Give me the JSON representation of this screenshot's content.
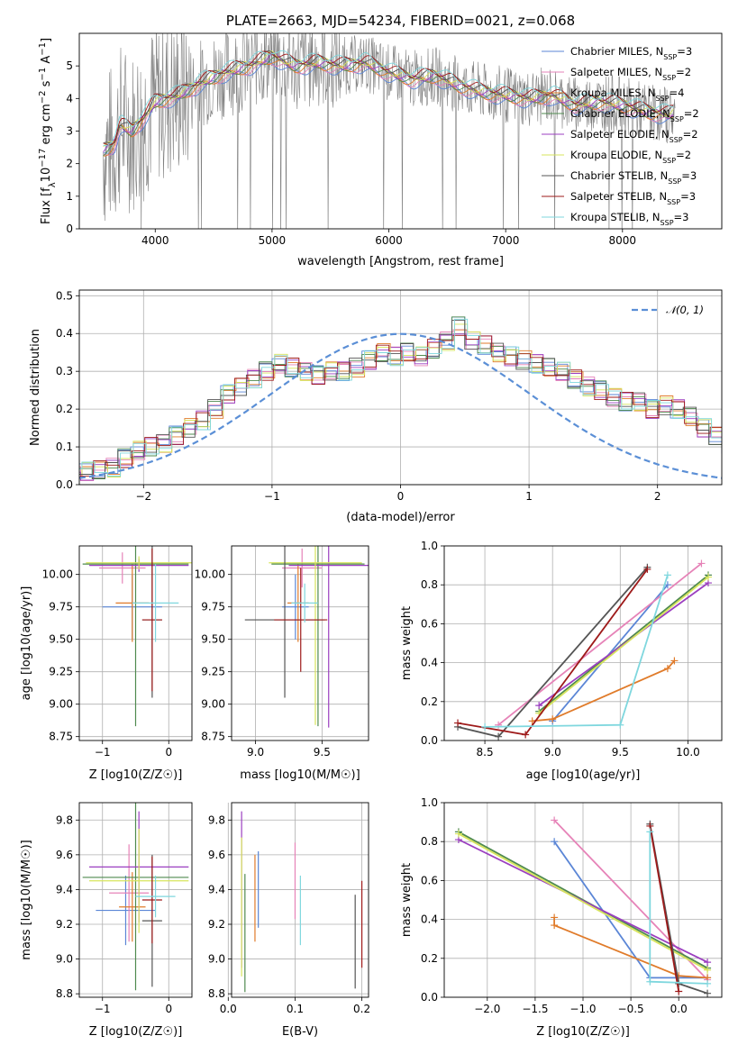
{
  "colors": {
    "chabrier_miles": "#5b86d6",
    "salpeter_miles": "#e683b8",
    "kroupa_miles": "#e07b2a",
    "chabrier_elodie": "#4f8a4f",
    "salpeter_elodie": "#9b3fc0",
    "kroupa_elodie": "#d7e45c",
    "chabrier_stelib": "#555555",
    "salpeter_stelib": "#9e1a1a",
    "kroupa_stelib": "#7fd7de",
    "data": "#808080",
    "normal": "#5b8fd6"
  },
  "chart_data": [
    {
      "id": "spectrum",
      "type": "line",
      "title": "PLATE=2663, MJD=54234, FIBERID=0021, z=0.068",
      "xlabel": "wavelength [Angstrom, rest frame]",
      "ylabel": "Flux [fλ10⁻¹⁷ erg cm⁻² s⁻¹ A⁻¹]",
      "xlim": [
        3350,
        8850
      ],
      "ylim": [
        0,
        6
      ],
      "xticks": [
        4000,
        5000,
        6000,
        7000,
        8000
      ],
      "yticks": [
        0,
        1,
        2,
        3,
        4,
        5
      ],
      "continuum": [
        [
          3550,
          2.4
        ],
        [
          3650,
          2.6
        ],
        [
          3700,
          3.2
        ],
        [
          3800,
          3.0
        ],
        [
          3900,
          3.4
        ],
        [
          4000,
          3.9
        ],
        [
          4200,
          4.1
        ],
        [
          4400,
          4.5
        ],
        [
          4600,
          4.8
        ],
        [
          4800,
          5.0
        ],
        [
          5000,
          5.3
        ],
        [
          5200,
          5.0
        ],
        [
          5400,
          5.1
        ],
        [
          5600,
          5.0
        ],
        [
          5800,
          5.1
        ],
        [
          6000,
          4.8
        ],
        [
          6200,
          4.6
        ],
        [
          6400,
          4.7
        ],
        [
          6600,
          4.4
        ],
        [
          6800,
          4.2
        ],
        [
          7000,
          4.1
        ],
        [
          7200,
          4.0
        ],
        [
          7400,
          4.1
        ],
        [
          7600,
          3.8
        ],
        [
          7800,
          3.9
        ],
        [
          8000,
          3.8
        ],
        [
          8200,
          3.6
        ],
        [
          8400,
          3.5
        ],
        [
          8450,
          3.6
        ]
      ],
      "legend_placement": "upper-right",
      "series": [
        {
          "name": "Chabrier MILES, N",
          "sub": "SSP",
          "suffix": "=3",
          "color": "chabrier_miles"
        },
        {
          "name": "Salpeter MILES, N",
          "sub": "SSP",
          "suffix": "=2",
          "color": "salpeter_miles"
        },
        {
          "name": "Kroupa MILES, N",
          "sub": "SSP",
          "suffix": "=4",
          "color": "kroupa_miles"
        },
        {
          "name": "Chabrier ELODIE, N",
          "sub": "SSP",
          "suffix": "=2",
          "color": "chabrier_elodie"
        },
        {
          "name": "Salpeter ELODIE, N",
          "sub": "SSP",
          "suffix": "=2",
          "color": "salpeter_elodie"
        },
        {
          "name": "Kroupa ELODIE, N",
          "sub": "SSP",
          "suffix": "=2",
          "color": "kroupa_elodie"
        },
        {
          "name": "Chabrier STELIB, N",
          "sub": "SSP",
          "suffix": "=3",
          "color": "chabrier_stelib"
        },
        {
          "name": "Salpeter STELIB, N",
          "sub": "SSP",
          "suffix": "=3",
          "color": "salpeter_stelib"
        },
        {
          "name": "Kroupa STELIB, N",
          "sub": "SSP",
          "suffix": "=3",
          "color": "kroupa_stelib"
        }
      ]
    },
    {
      "id": "residuals",
      "type": "line",
      "xlabel": "(data-model)/error",
      "ylabel": "Normed distribution",
      "xlim": [
        -2.5,
        2.5
      ],
      "ylim": [
        0,
        0.515
      ],
      "xticks": [
        -2,
        -1,
        0,
        1,
        2
      ],
      "yticks": [
        0.0,
        0.1,
        0.2,
        0.3,
        0.4,
        0.5
      ],
      "grid": true,
      "legend_placement": "upper-right",
      "legend": "𝒩(0, 1)",
      "bin_width": 0.1,
      "histogram": [
        0.04,
        0.04,
        0.035,
        0.045,
        0.04,
        0.035,
        0.04,
        0.045,
        0.07,
        0.09,
        0.1,
        0.11,
        0.13,
        0.15,
        0.17,
        0.2,
        0.24,
        0.26,
        0.28,
        0.3,
        0.32,
        0.31,
        0.3,
        0.29,
        0.3,
        0.3,
        0.31,
        0.33,
        0.35,
        0.34,
        0.35,
        0.34,
        0.36,
        0.38,
        0.42,
        0.38,
        0.37,
        0.35,
        0.34,
        0.33,
        0.32,
        0.31,
        0.3,
        0.28,
        0.26,
        0.25,
        0.23,
        0.22,
        0.22,
        0.2,
        0.21,
        0.2,
        0.18,
        0.15,
        0.13,
        0.1,
        0.09,
        0.08,
        0.07,
        0.07,
        0.06,
        0.06,
        0.055,
        0.05,
        0.045,
        0.04,
        0.04,
        0.035,
        0.035,
        0.03
      ]
    },
    {
      "id": "age-vs-z",
      "type": "scatter",
      "xlabel": "Z [log10(Z/Z☉)]",
      "ylabel": "age  [log10(age/yr)]",
      "xlim": [
        -1.35,
        0.35
      ],
      "ylim": [
        8.72,
        10.22
      ],
      "xticks": [
        -1,
        0
      ],
      "yticks": [
        8.75,
        9.0,
        9.25,
        9.5,
        9.75,
        10.0
      ],
      "grid": true,
      "points": [
        {
          "color": "chabrier_miles",
          "x": -0.55,
          "xerr": 0.45,
          "y": 9.75,
          "yerr": 0.25
        },
        {
          "color": "salpeter_miles",
          "x": -0.7,
          "xerr": 0.35,
          "y": 10.05,
          "yerr": 0.12
        },
        {
          "color": "kroupa_miles",
          "x": -0.55,
          "xerr": 0.25,
          "y": 9.78,
          "yerr": 0.3
        },
        {
          "color": "chabrier_elodie",
          "x": -0.5,
          "xerr": 0.8,
          "y": 10.08,
          "yerr": 1.25
        },
        {
          "color": "salpeter_elodie",
          "x": -0.45,
          "xerr": 0.75,
          "y": 10.07,
          "yerr": 0.05
        },
        {
          "color": "kroupa_elodie",
          "x": -0.45,
          "xerr": 0.8,
          "y": 10.09,
          "yerr": 0.05
        },
        {
          "color": "chabrier_stelib",
          "x": -0.25,
          "xerr": 0.15,
          "y": 9.65,
          "yerr": 0.6
        },
        {
          "color": "salpeter_stelib",
          "x": -0.25,
          "xerr": 0.15,
          "y": 9.65,
          "yerr": 0.55
        },
        {
          "color": "kroupa_stelib",
          "x": -0.2,
          "xerr": 0.35,
          "y": 9.78,
          "yerr": 0.3
        }
      ]
    },
    {
      "id": "age-vs-mass",
      "type": "scatter",
      "xlabel": "mass [log10(M/M☉)]",
      "xlim": [
        8.82,
        9.85
      ],
      "ylim": [
        8.72,
        10.22
      ],
      "xticks": [
        9.0,
        9.5
      ],
      "yticks": [
        8.75,
        9.0,
        9.25,
        9.5,
        9.75,
        10.0
      ],
      "grid": true,
      "points": [
        {
          "color": "chabrier_miles",
          "x": 9.3,
          "xerr": 0.1,
          "y": 9.75,
          "yerr": 0.25
        },
        {
          "color": "salpeter_miles",
          "x": 9.35,
          "xerr": 0.15,
          "y": 10.05,
          "yerr": 0.15
        },
        {
          "color": "kroupa_miles",
          "x": 9.32,
          "xerr": 0.08,
          "y": 9.78,
          "yerr": 0.3
        },
        {
          "color": "chabrier_elodie",
          "x": 9.47,
          "xerr": 0.35,
          "y": 10.08,
          "yerr": 1.25
        },
        {
          "color": "salpeter_elodie",
          "x": 9.55,
          "xerr": 0.3,
          "y": 10.07,
          "yerr": 1.25
        },
        {
          "color": "kroupa_elodie",
          "x": 9.45,
          "xerr": 0.35,
          "y": 10.09,
          "yerr": 1.25
        },
        {
          "color": "chabrier_stelib",
          "x": 9.22,
          "xerr": 0.3,
          "y": 9.65,
          "yerr": 0.6
        },
        {
          "color": "salpeter_stelib",
          "x": 9.34,
          "xerr": 0.2,
          "y": 9.65,
          "yerr": 0.4
        },
        {
          "color": "kroupa_stelib",
          "x": 9.37,
          "xerr": 0.1,
          "y": 9.78,
          "yerr": 0.15
        }
      ]
    },
    {
      "id": "mass-weight-vs-age",
      "type": "line",
      "xlabel": "age  [log10(age/yr)]",
      "ylabel": "mass weight",
      "xlim": [
        8.2,
        10.25
      ],
      "ylim": [
        0,
        1
      ],
      "xticks": [
        8.5,
        9.0,
        9.5,
        10.0
      ],
      "yticks": [
        0.0,
        0.2,
        0.4,
        0.6,
        0.8,
        1.0
      ],
      "grid": true,
      "series": [
        {
          "color": "chabrier_miles",
          "x": [
            9.0,
            9.85
          ],
          "y": [
            0.1,
            0.8
          ]
        },
        {
          "color": "salpeter_miles",
          "x": [
            8.6,
            10.1
          ],
          "y": [
            0.08,
            0.91
          ]
        },
        {
          "color": "kroupa_miles",
          "x": [
            8.85,
            9.0,
            9.85,
            9.9
          ],
          "y": [
            0.1,
            0.11,
            0.37,
            0.41
          ]
        },
        {
          "color": "chabrier_elodie",
          "x": [
            8.9,
            10.15
          ],
          "y": [
            0.15,
            0.85
          ]
        },
        {
          "color": "salpeter_elodie",
          "x": [
            8.9,
            10.15
          ],
          "y": [
            0.18,
            0.81
          ]
        },
        {
          "color": "kroupa_elodie",
          "x": [
            8.9,
            10.15
          ],
          "y": [
            0.14,
            0.84
          ]
        },
        {
          "color": "chabrier_stelib",
          "x": [
            8.3,
            8.6,
            9.7
          ],
          "y": [
            0.07,
            0.02,
            0.89
          ]
        },
        {
          "color": "salpeter_stelib",
          "x": [
            8.3,
            8.8,
            9.7
          ],
          "y": [
            0.09,
            0.03,
            0.88
          ]
        },
        {
          "color": "kroupa_stelib",
          "x": [
            8.5,
            9.5,
            9.85
          ],
          "y": [
            0.07,
            0.08,
            0.85
          ]
        }
      ]
    },
    {
      "id": "mass-vs-z",
      "type": "scatter",
      "xlabel": "Z [log10(Z/Z☉)]",
      "ylabel": "mass [log10(M/M☉)]",
      "xlim": [
        -1.35,
        0.35
      ],
      "ylim": [
        8.78,
        9.9
      ],
      "xticks": [
        -1,
        0
      ],
      "yticks": [
        8.8,
        9.0,
        9.2,
        9.4,
        9.6,
        9.8
      ],
      "grid": true,
      "points": [
        {
          "color": "chabrier_miles",
          "x": -0.65,
          "xerr": 0.45,
          "y": 9.28,
          "yerr": 0.2
        },
        {
          "color": "salpeter_miles",
          "x": -0.6,
          "xerr": 0.3,
          "y": 9.38,
          "yerr": 0.28
        },
        {
          "color": "kroupa_miles",
          "x": -0.55,
          "xerr": 0.2,
          "y": 9.3,
          "yerr": 0.2
        },
        {
          "color": "chabrier_elodie",
          "x": -0.5,
          "xerr": 0.8,
          "y": 9.47,
          "yerr": 0.65
        },
        {
          "color": "salpeter_elodie",
          "x": -0.45,
          "xerr": 0.75,
          "y": 9.53,
          "yerr": 0.32
        },
        {
          "color": "kroupa_elodie",
          "x": -0.45,
          "xerr": 0.75,
          "y": 9.45,
          "yerr": 0.3
        },
        {
          "color": "chabrier_stelib",
          "x": -0.25,
          "xerr": 0.15,
          "y": 9.22,
          "yerr": 0.38
        },
        {
          "color": "salpeter_stelib",
          "x": -0.25,
          "xerr": 0.15,
          "y": 9.34,
          "yerr": 0.25
        },
        {
          "color": "kroupa_stelib",
          "x": -0.2,
          "xerr": 0.3,
          "y": 9.36,
          "yerr": 0.12
        }
      ]
    },
    {
      "id": "mass-vs-ebv",
      "type": "scatter",
      "xlabel": "E(B-V)",
      "xlim": [
        0.005,
        0.21
      ],
      "ylim": [
        8.78,
        9.9
      ],
      "xticks": [
        0.0,
        0.1,
        0.2
      ],
      "yticks": [
        8.8,
        9.0,
        9.2,
        9.4,
        9.6,
        9.8
      ],
      "grid": true,
      "points": [
        {
          "color": "chabrier_miles",
          "x": 0.045,
          "y": 9.4,
          "yerr": 0.22
        },
        {
          "color": "salpeter_miles",
          "x": 0.1,
          "y": 9.45,
          "yerr": 0.22
        },
        {
          "color": "kroupa_miles",
          "x": 0.04,
          "y": 9.35,
          "yerr": 0.25
        },
        {
          "color": "chabrier_elodie",
          "x": 0.025,
          "y": 9.15,
          "yerr": 0.34
        },
        {
          "color": "salpeter_elodie",
          "x": 0.02,
          "y": 9.4,
          "yerr": 0.45
        },
        {
          "color": "kroupa_elodie",
          "x": 0.02,
          "y": 9.3,
          "yerr": 0.4
        },
        {
          "color": "chabrier_stelib",
          "x": 0.19,
          "y": 9.1,
          "yerr": 0.27
        },
        {
          "color": "salpeter_stelib",
          "x": 0.2,
          "y": 9.2,
          "yerr": 0.25
        },
        {
          "color": "kroupa_stelib",
          "x": 0.108,
          "y": 9.28,
          "yerr": 0.2
        }
      ]
    },
    {
      "id": "mass-weight-vs-z",
      "type": "line",
      "xlabel": "Z [log10(Z/Z☉)]",
      "ylabel": "mass weight",
      "xlim": [
        -2.45,
        0.45
      ],
      "ylim": [
        0,
        1
      ],
      "xticks": [
        -2.0,
        -1.5,
        -1.0,
        -0.5,
        0.0
      ],
      "yticks": [
        0.0,
        0.2,
        0.4,
        0.6,
        0.8,
        1.0
      ],
      "grid": true,
      "series": [
        {
          "color": "chabrier_miles",
          "x": [
            -1.3,
            -0.3,
            0.3
          ],
          "y": [
            0.8,
            0.1,
            0.1
          ]
        },
        {
          "color": "salpeter_miles",
          "x": [
            -1.3,
            0.3
          ],
          "y": [
            0.91,
            0.09
          ]
        },
        {
          "color": "kroupa_miles",
          "x": [
            -1.3,
            -1.3,
            0.0,
            0.3
          ],
          "y": [
            0.41,
            0.37,
            0.11,
            0.1
          ]
        },
        {
          "color": "chabrier_elodie",
          "x": [
            -2.3,
            0.3
          ],
          "y": [
            0.85,
            0.15
          ]
        },
        {
          "color": "salpeter_elodie",
          "x": [
            -2.3,
            0.3
          ],
          "y": [
            0.81,
            0.18
          ]
        },
        {
          "color": "kroupa_elodie",
          "x": [
            -2.3,
            0.3
          ],
          "y": [
            0.84,
            0.14
          ]
        },
        {
          "color": "chabrier_stelib",
          "x": [
            -0.3,
            0.0,
            0.3
          ],
          "y": [
            0.89,
            0.07,
            0.02
          ]
        },
        {
          "color": "salpeter_stelib",
          "x": [
            -0.3,
            0.0
          ],
          "y": [
            0.88,
            0.03
          ]
        },
        {
          "color": "kroupa_stelib",
          "x": [
            -0.3,
            -0.3,
            0.3
          ],
          "y": [
            0.85,
            0.08,
            0.07
          ]
        }
      ]
    }
  ]
}
